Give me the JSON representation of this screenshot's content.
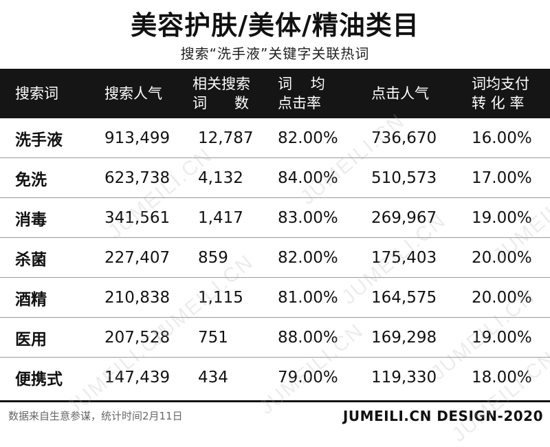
{
  "title": "美容护肤/美体/精油类目",
  "subtitle": "搜索“洗手液”关键字关联热词",
  "chart_data": {
    "type": "table",
    "headers": [
      {
        "lines": [
          "搜索词"
        ]
      },
      {
        "lines": [
          "搜索人气"
        ]
      },
      {
        "lines": [
          "相关搜索",
          "词      数"
        ]
      },
      {
        "lines": [
          "词    均",
          "点击率"
        ]
      },
      {
        "lines": [
          "点击人气"
        ]
      },
      {
        "lines": [
          "词均支付",
          "转 化 率"
        ]
      }
    ],
    "rows": [
      [
        "洗手液",
        "913,499",
        "12,787",
        "82.00%",
        "736,670",
        "16.00%"
      ],
      [
        "免洗",
        "623,738",
        "4,132",
        "84.00%",
        "510,573",
        "17.00%"
      ],
      [
        "消毒",
        "341,561",
        "1,417",
        "83.00%",
        "269,967",
        "19.00%"
      ],
      [
        "杀菌",
        "227,407",
        "859",
        "82.00%",
        "175,403",
        "20.00%"
      ],
      [
        "酒精",
        "210,838",
        "1,115",
        "81.00%",
        "164,575",
        "20.00%"
      ],
      [
        "医用",
        "207,528",
        "751",
        "88.00%",
        "169,298",
        "19.00%"
      ],
      [
        "便携式",
        "147,439",
        "434",
        "79.00%",
        "119,330",
        "18.00%"
      ]
    ]
  },
  "footer": {
    "source": "数据来自生意参谋，统计时间2月11日",
    "brand": "JUMEILI.CN DESIGN-2020"
  },
  "watermark": "JUMEILI.CN",
  "colors": {
    "header_bg": "#151515",
    "header_text": "#ffffff"
  }
}
